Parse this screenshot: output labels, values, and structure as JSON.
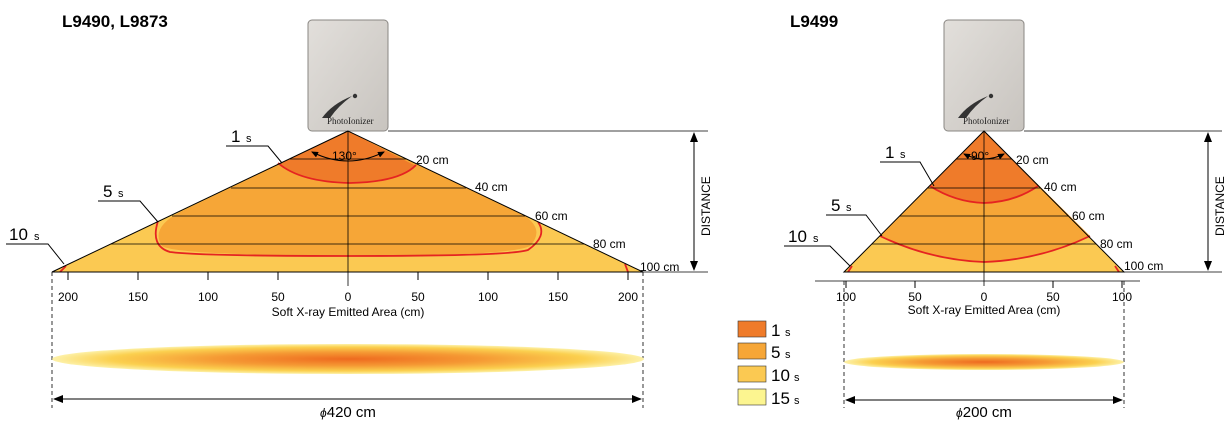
{
  "left_panel": {
    "title": "L9490, L9873",
    "device_brand": "PhotoIonizer",
    "angle": "130°",
    "distance_label": "DISTANCE",
    "distance_marks": [
      "20 cm",
      "40 cm",
      "60 cm",
      "80 cm",
      "100 cm"
    ],
    "time_labels": [
      {
        "value": "1",
        "unit": "s"
      },
      {
        "value": "5",
        "unit": "s"
      },
      {
        "value": "10",
        "unit": "s"
      }
    ],
    "axis_ticks": [
      "200",
      "150",
      "100",
      "50",
      "0",
      "50",
      "100",
      "150",
      "200"
    ],
    "axis_label": "Soft X-ray Emitted Area (cm)",
    "diameter_symbol": "ϕ",
    "diameter_value": "420 cm"
  },
  "right_panel": {
    "title": "L9499",
    "device_brand": "PhotoIonizer",
    "angle": "90°",
    "distance_label": "DISTANCE",
    "distance_marks": [
      "20 cm",
      "40 cm",
      "60 cm",
      "80 cm",
      "100 cm"
    ],
    "time_labels": [
      {
        "value": "1",
        "unit": "s"
      },
      {
        "value": "5",
        "unit": "s"
      },
      {
        "value": "10",
        "unit": "s"
      }
    ],
    "axis_ticks": [
      "100",
      "50",
      "0",
      "50",
      "100"
    ],
    "axis_label": "Soft X-ray Emitted Area (cm)",
    "diameter_symbol": "ϕ",
    "diameter_value": "200 cm"
  },
  "legend": [
    {
      "value": "1",
      "unit": "s",
      "color": "#ef7b2a"
    },
    {
      "value": "5",
      "unit": "s",
      "color": "#f6a637"
    },
    {
      "value": "10",
      "unit": "s",
      "color": "#fbc952"
    },
    {
      "value": "15",
      "unit": "s",
      "color": "#fcf590"
    }
  ],
  "colors": {
    "zone_1s": "#ef7b2a",
    "zone_5s": "#f6a637",
    "zone_10s": "#fbc952",
    "contour": "#e52421",
    "device_body": "#d3d0cc"
  }
}
